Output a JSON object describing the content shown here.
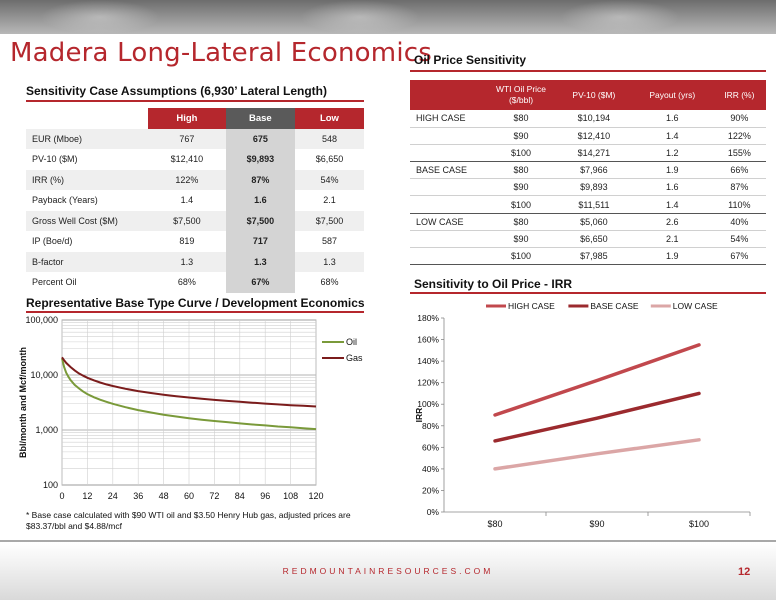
{
  "page": {
    "title": "Madera Long-Lateral Economics",
    "footer_url": "REDMOUNTAINRESOURCES.COM",
    "page_number": "12",
    "accent_color": "#b5272d"
  },
  "assumptions": {
    "title": "Sensitivity Case Assumptions (6,930’ Lateral Length)",
    "headers": [
      "High",
      "Base",
      "Low"
    ],
    "rows": [
      {
        "label": "EUR (Mboe)",
        "high": "767",
        "base": "675",
        "low": "548"
      },
      {
        "label": "PV-10 ($M)",
        "high": "$12,410",
        "base": "$9,893",
        "low": "$6,650"
      },
      {
        "label": "IRR (%)",
        "high": "122%",
        "base": "87%",
        "low": "54%"
      },
      {
        "label": "Payback (Years)",
        "high": "1.4",
        "base": "1.6",
        "low": "2.1"
      },
      {
        "label": "Gross Well Cost ($M)",
        "high": "$7,500",
        "base": "$7,500",
        "low": "$7,500"
      },
      {
        "label": "IP (Boe/d)",
        "high": "819",
        "base": "717",
        "low": "587"
      },
      {
        "label": "B-factor",
        "high": "1.3",
        "base": "1.3",
        "low": "1.3"
      },
      {
        "label": "Percent Oil",
        "high": "68%",
        "base": "67%",
        "low": "68%"
      }
    ]
  },
  "oil_sensitivity": {
    "title": "Oil Price Sensitivity",
    "headers": [
      "",
      "WTI Oil Price ($/bbl)",
      "PV-10 ($M)",
      "Payout (yrs)",
      "IRR (%)"
    ],
    "rows": [
      {
        "case": "HIGH CASE",
        "price": "$80",
        "pv10": "$10,194",
        "payout": "1.6",
        "irr": "90%"
      },
      {
        "case": "",
        "price": "$90",
        "pv10": "$12,410",
        "payout": "1.4",
        "irr": "122%"
      },
      {
        "case": "",
        "price": "$100",
        "pv10": "$14,271",
        "payout": "1.2",
        "irr": "155%"
      },
      {
        "case": "BASE CASE",
        "price": "$80",
        "pv10": "$7,966",
        "payout": "1.9",
        "irr": "66%"
      },
      {
        "case": "",
        "price": "$90",
        "pv10": "$9,893",
        "payout": "1.6",
        "irr": "87%"
      },
      {
        "case": "",
        "price": "$100",
        "pv10": "$11,511",
        "payout": "1.4",
        "irr": "110%"
      },
      {
        "case": "LOW CASE",
        "price": "$80",
        "pv10": "$5,060",
        "payout": "2.6",
        "irr": "40%"
      },
      {
        "case": "",
        "price": "$90",
        "pv10": "$6,650",
        "payout": "2.1",
        "irr": "54%"
      },
      {
        "case": "",
        "price": "$100",
        "pv10": "$7,985",
        "payout": "1.9",
        "irr": "67%"
      }
    ]
  },
  "type_curve": {
    "title": "Representative Base Type Curve / Development Economics",
    "footnote": "* Base case calculated with $90 WTI oil and $3.50 Henry Hub gas, adjusted prices are $83.37/bbl and $4.88/mcf"
  },
  "irr_chart": {
    "title": "Sensitivity to Oil Price - IRR"
  },
  "chart_data": [
    {
      "type": "line",
      "title": "",
      "xlabel": "",
      "ylabel": "Bbl/month and Mcf/month",
      "y_scale": "log",
      "xlim": [
        0,
        120
      ],
      "ylim": [
        100,
        100000
      ],
      "x_ticks": [
        0,
        12,
        24,
        36,
        48,
        60,
        72,
        84,
        96,
        108,
        120
      ],
      "y_ticks": [
        "100",
        "1,000",
        "10,000",
        "100,000"
      ],
      "grid": true,
      "legend_position": "right",
      "x": [
        0,
        1,
        2,
        3,
        4,
        6,
        8,
        10,
        12,
        15,
        18,
        21,
        24,
        30,
        36,
        42,
        48,
        54,
        60,
        66,
        72,
        78,
        84,
        90,
        96,
        102,
        108,
        114,
        120
      ],
      "series": [
        {
          "name": "Oil",
          "color": "#7a9a3a",
          "values": [
            20000,
            14000,
            11000,
            9300,
            8100,
            6600,
            5700,
            5000,
            4500,
            3950,
            3550,
            3250,
            3000,
            2600,
            2300,
            2080,
            1900,
            1760,
            1640,
            1540,
            1460,
            1390,
            1320,
            1260,
            1210,
            1160,
            1120,
            1080,
            1040
          ]
        },
        {
          "name": "Gas",
          "color": "#7b1c1c",
          "values": [
            21000,
            18500,
            16600,
            15200,
            14000,
            12100,
            10700,
            9700,
            8900,
            8000,
            7300,
            6750,
            6300,
            5600,
            5100,
            4700,
            4380,
            4120,
            3900,
            3700,
            3530,
            3380,
            3250,
            3130,
            3020,
            2920,
            2830,
            2750,
            2670
          ]
        }
      ]
    },
    {
      "type": "line",
      "title": "",
      "xlabel": "",
      "ylabel": "IRR",
      "categories": [
        "$80",
        "$90",
        "$100"
      ],
      "ylim": [
        0,
        180
      ],
      "y_ticks": [
        "0%",
        "20%",
        "40%",
        "60%",
        "80%",
        "100%",
        "120%",
        "140%",
        "160%",
        "180%"
      ],
      "grid": false,
      "legend_position": "top",
      "series": [
        {
          "name": "HIGH CASE",
          "color": "#c1484d",
          "values": [
            90,
            122,
            155
          ]
        },
        {
          "name": "BASE CASE",
          "color": "#9b2a2e",
          "values": [
            66,
            87,
            110
          ]
        },
        {
          "name": "LOW CASE",
          "color": "#dba6a6",
          "values": [
            40,
            54,
            67
          ]
        }
      ]
    }
  ]
}
